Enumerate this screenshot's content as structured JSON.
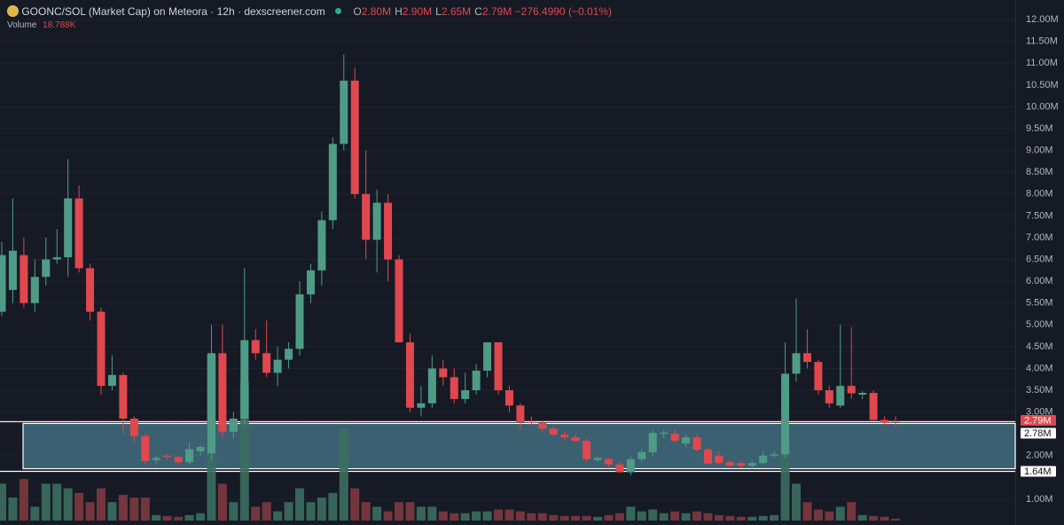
{
  "chart_data": {
    "type": "candlestick",
    "header": {
      "title": "GOONC/SOL (Market Cap) on Meteora · 12h · dexscreener.com",
      "ohlc": [
        {
          "key": "O",
          "value": "2.80M"
        },
        {
          "key": "H",
          "value": "2.90M"
        },
        {
          "key": "L",
          "value": "2.65M"
        },
        {
          "key": "C",
          "value": "2.79M"
        }
      ],
      "change": "−276.4990 (−0.01%)",
      "volume_label": "Volume",
      "volume_value": "18.788K"
    },
    "open": [
      5.3,
      5.8,
      6.6,
      5.5,
      6.1,
      6.5,
      6.55,
      7.9,
      6.3,
      5.3,
      3.6,
      3.85,
      2.85,
      2.45,
      1.9,
      2.0,
      1.97,
      1.85,
      2.1,
      2.05,
      4.35,
      2.55,
      2.85,
      4.65,
      4.35,
      3.9,
      4.2,
      4.45,
      5.7,
      6.25,
      7.4,
      9.15,
      10.6,
      8.0,
      6.95,
      7.8,
      6.5,
      4.6,
      3.1,
      3.2,
      4.0,
      3.8,
      3.3,
      3.5,
      3.95,
      4.6,
      3.5,
      3.15,
      2.77,
      2.75,
      2.62,
      2.48,
      2.42,
      2.34,
      1.9,
      1.92,
      1.8,
      1.62,
      1.92,
      2.08,
      2.5,
      2.5,
      2.28,
      2.42,
      2.14,
      2.0,
      1.85,
      1.83,
      1.77,
      1.83,
      2.0,
      2.03,
      3.88,
      4.35,
      4.15,
      3.5,
      3.15,
      3.6,
      3.4,
      3.44,
      2.82,
      2.8
    ],
    "high": [
      6.9,
      7.9,
      7.0,
      6.5,
      7.0,
      7.2,
      8.8,
      8.2,
      6.4,
      5.4,
      4.3,
      3.9,
      2.9,
      2.5,
      2.0,
      2.05,
      2.0,
      2.3,
      2.25,
      5.0,
      5.0,
      3.0,
      6.3,
      4.9,
      5.1,
      4.5,
      4.6,
      6.0,
      6.4,
      7.6,
      9.3,
      11.2,
      10.9,
      9.0,
      8.1,
      8.0,
      6.6,
      4.8,
      3.6,
      4.3,
      4.2,
      4.0,
      3.9,
      4.1,
      4.6,
      4.6,
      3.6,
      3.2,
      2.9,
      2.8,
      2.7,
      2.55,
      2.5,
      2.4,
      1.98,
      1.96,
      1.85,
      1.98,
      2.15,
      2.6,
      2.6,
      2.6,
      2.5,
      2.5,
      2.2,
      2.1,
      1.9,
      1.9,
      1.9,
      2.1,
      2.1,
      4.6,
      5.6,
      4.9,
      4.2,
      3.6,
      5.0,
      4.95,
      3.48,
      3.5,
      2.9,
      2.9
    ],
    "low": [
      5.2,
      5.5,
      5.4,
      5.3,
      5.9,
      6.4,
      6.1,
      6.2,
      5.1,
      3.4,
      3.5,
      2.5,
      2.3,
      1.8,
      1.8,
      1.9,
      1.8,
      1.8,
      2.0,
      1.9,
      2.4,
      2.4,
      2.7,
      4.2,
      3.8,
      3.6,
      4.0,
      4.3,
      5.5,
      5.9,
      7.2,
      9.0,
      7.9,
      6.5,
      6.2,
      6.0,
      4.6,
      3.0,
      2.9,
      3.1,
      3.6,
      3.2,
      3.2,
      3.4,
      3.8,
      3.4,
      3.0,
      2.6,
      2.7,
      2.55,
      2.45,
      2.35,
      2.3,
      1.85,
      1.85,
      1.75,
      1.6,
      1.55,
      1.85,
      2.0,
      2.4,
      2.3,
      2.2,
      2.1,
      1.8,
      1.8,
      1.75,
      1.72,
      1.7,
      1.8,
      1.95,
      1.95,
      3.7,
      4.0,
      3.4,
      3.1,
      3.1,
      3.3,
      3.3,
      2.8,
      2.7,
      2.65
    ],
    "close": [
      6.6,
      6.7,
      5.5,
      6.1,
      6.5,
      6.55,
      7.9,
      6.3,
      5.3,
      3.6,
      3.85,
      2.85,
      2.45,
      1.88,
      1.95,
      1.97,
      1.85,
      2.15,
      2.2,
      4.35,
      2.55,
      2.85,
      4.65,
      4.35,
      3.9,
      4.2,
      4.45,
      5.7,
      6.25,
      7.4,
      9.15,
      10.6,
      8.0,
      6.95,
      7.8,
      6.5,
      4.6,
      3.1,
      3.2,
      4.0,
      3.8,
      3.3,
      3.5,
      3.95,
      4.6,
      3.5,
      3.15,
      2.77,
      2.75,
      2.62,
      2.48,
      2.42,
      2.34,
      1.92,
      1.95,
      1.8,
      1.62,
      1.92,
      2.08,
      2.52,
      2.53,
      2.34,
      2.42,
      2.14,
      1.82,
      1.83,
      1.77,
      1.77,
      1.83,
      2.0,
      2.03,
      3.88,
      4.35,
      4.15,
      3.5,
      3.2,
      3.6,
      3.43,
      3.44,
      2.82,
      2.75,
      2.79
    ],
    "volume": [
      376,
      235,
      423,
      141,
      376,
      376,
      329,
      282,
      188,
      329,
      188,
      263,
      235,
      235,
      56,
      47,
      38,
      56,
      75,
      1692,
      376,
      188,
      1410,
      141,
      188,
      94,
      188,
      329,
      188,
      235,
      282,
      940,
      329,
      188,
      141,
      94,
      188,
      188,
      141,
      141,
      94,
      75,
      75,
      94,
      94,
      113,
      113,
      94,
      75,
      75,
      56,
      47,
      47,
      47,
      38,
      56,
      75,
      141,
      94,
      113,
      75,
      94,
      75,
      94,
      75,
      56,
      47,
      38,
      38,
      47,
      56,
      799,
      376,
      188,
      113,
      94,
      141,
      188,
      56,
      47,
      38,
      18.788
    ],
    "up_color": "#4f9c86",
    "down_color": "#e0484e",
    "ylim": [
      0.41,
      12.45
    ],
    "yticks": [
      {
        "value": 1,
        "label": "1.00M"
      },
      {
        "value": 2,
        "label": "2.00M"
      },
      {
        "value": 3,
        "label": "3.00M"
      },
      {
        "value": 3.5,
        "label": "3.50M"
      },
      {
        "value": 4,
        "label": "4.00M"
      },
      {
        "value": 4.5,
        "label": "4.50M"
      },
      {
        "value": 5,
        "label": "5.00M"
      },
      {
        "value": 5.5,
        "label": "5.50M"
      },
      {
        "value": 6,
        "label": "6.00M"
      },
      {
        "value": 6.5,
        "label": "6.50M"
      },
      {
        "value": 7,
        "label": "7.00M"
      },
      {
        "value": 7.5,
        "label": "7.50M"
      },
      {
        "value": 8,
        "label": "8.00M"
      },
      {
        "value": 8.5,
        "label": "8.50M"
      },
      {
        "value": 9,
        "label": "9.00M"
      },
      {
        "value": 9.5,
        "label": "9.50M"
      },
      {
        "value": 10,
        "label": "10.00M"
      },
      {
        "value": 10.5,
        "label": "10.50M"
      },
      {
        "value": 11,
        "label": "11.00M"
      },
      {
        "value": 11.5,
        "label": "11.50M"
      },
      {
        "value": 12,
        "label": "12.00M"
      }
    ],
    "grid": true,
    "current_price": {
      "value": 2.79,
      "label": "2.79M"
    },
    "zone": [
      {
        "value": 2.78,
        "label": "2.78M"
      },
      {
        "value": 1.64,
        "label": "1.64M"
      }
    ],
    "zone_color": "#5b9bb0"
  }
}
